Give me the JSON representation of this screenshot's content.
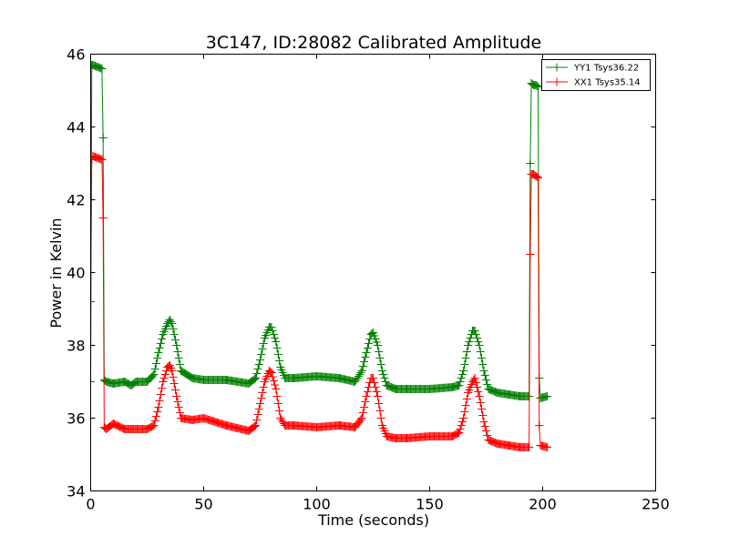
{
  "chart_data": {
    "type": "line",
    "title": "3C147, ID:28082 Calibrated Amplitude",
    "xlabel": "Time (seconds)",
    "ylabel": "Power in Kelvin",
    "xlim": [
      0,
      250
    ],
    "ylim": [
      34,
      46
    ],
    "xticks": [
      0,
      50,
      100,
      150,
      200,
      250
    ],
    "yticks": [
      34,
      36,
      38,
      40,
      42,
      44,
      46
    ],
    "grid": false,
    "legend_position": "top-right",
    "marker": "+",
    "series": [
      {
        "name": "YY1 Tsys36.22",
        "color": "#008000",
        "x": [
          0,
          0.5,
          1,
          3,
          5,
          5.5,
          6,
          7,
          10,
          15,
          18,
          20,
          25,
          28,
          30,
          32,
          34,
          35,
          36,
          38,
          40,
          45,
          50,
          60,
          70,
          73,
          75,
          77,
          79,
          80,
          82,
          84,
          86,
          90,
          100,
          110,
          117,
          120,
          122,
          124,
          125,
          127,
          129,
          131,
          135,
          140,
          150,
          160,
          163,
          165,
          167,
          169,
          170,
          172,
          174,
          176,
          180,
          185,
          190,
          194,
          194.5,
          195,
          196,
          197,
          198,
          198.5,
          199,
          202
        ],
        "y": [
          37.0,
          45.7,
          45.7,
          45.65,
          45.6,
          43.7,
          37.05,
          37.0,
          36.95,
          37.0,
          36.9,
          37.0,
          37.0,
          37.2,
          37.8,
          38.3,
          38.6,
          38.7,
          38.6,
          38.0,
          37.3,
          37.1,
          37.05,
          37.05,
          36.95,
          37.1,
          37.6,
          38.2,
          38.5,
          38.5,
          38.1,
          37.4,
          37.1,
          37.1,
          37.15,
          37.1,
          37.0,
          37.3,
          37.8,
          38.3,
          38.35,
          38.0,
          37.3,
          36.9,
          36.8,
          36.8,
          36.8,
          36.85,
          36.9,
          37.3,
          38.0,
          38.4,
          38.4,
          38.0,
          37.3,
          36.8,
          36.7,
          36.65,
          36.6,
          36.6,
          43.0,
          45.2,
          45.15,
          45.15,
          45.1,
          37.1,
          36.55,
          36.6
        ]
      },
      {
        "name": "XX1 Tsys35.14",
        "color": "#ff0000",
        "x": [
          0,
          0.5,
          1,
          3,
          5,
          5.5,
          6,
          7,
          10,
          15,
          18,
          20,
          25,
          28,
          30,
          32,
          34,
          35,
          36,
          38,
          40,
          45,
          50,
          60,
          70,
          73,
          75,
          77,
          79,
          80,
          82,
          84,
          86,
          90,
          100,
          110,
          117,
          120,
          122,
          124,
          125,
          127,
          129,
          131,
          135,
          140,
          150,
          160,
          163,
          165,
          167,
          169,
          170,
          172,
          174,
          176,
          180,
          185,
          190,
          194,
          194.5,
          195,
          196,
          197,
          198,
          198.5,
          199,
          202
        ],
        "y": [
          39.2,
          43.1,
          43.2,
          43.15,
          43.1,
          41.5,
          35.75,
          35.7,
          35.85,
          35.7,
          35.7,
          35.7,
          35.7,
          35.8,
          36.3,
          37.0,
          37.4,
          37.45,
          37.3,
          36.6,
          36.0,
          35.95,
          36.0,
          35.8,
          35.65,
          35.8,
          36.4,
          37.0,
          37.3,
          37.25,
          36.8,
          36.0,
          35.8,
          35.8,
          35.75,
          35.8,
          35.75,
          36.0,
          36.6,
          37.1,
          37.1,
          36.6,
          35.8,
          35.5,
          35.45,
          35.45,
          35.5,
          35.5,
          35.6,
          36.0,
          36.7,
          37.0,
          37.1,
          36.6,
          35.9,
          35.4,
          35.3,
          35.25,
          35.2,
          35.2,
          40.5,
          42.7,
          42.7,
          42.65,
          42.6,
          35.8,
          35.25,
          35.2
        ]
      }
    ]
  }
}
